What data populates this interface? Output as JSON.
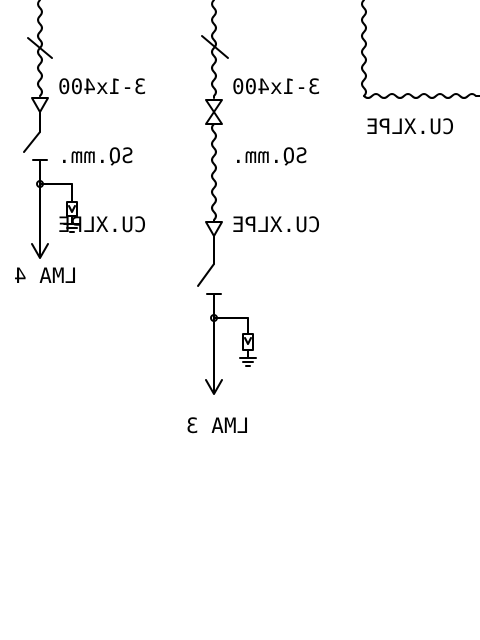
{
  "diagram": {
    "feeders": [
      {
        "cable_line1": "3-1x400",
        "cable_line2": "SQ.mm.",
        "cable_line3": "CU.XLPE",
        "load": "LMA 4"
      },
      {
        "cable_line1": "3-1x400",
        "cable_line2": "SQ.mm.",
        "cable_line3": "CU.XLPE",
        "load": "LMA 3"
      }
    ],
    "right_cable": "CU.XLPE"
  },
  "colors": {
    "line": "#000000",
    "background": "#ffffff"
  }
}
